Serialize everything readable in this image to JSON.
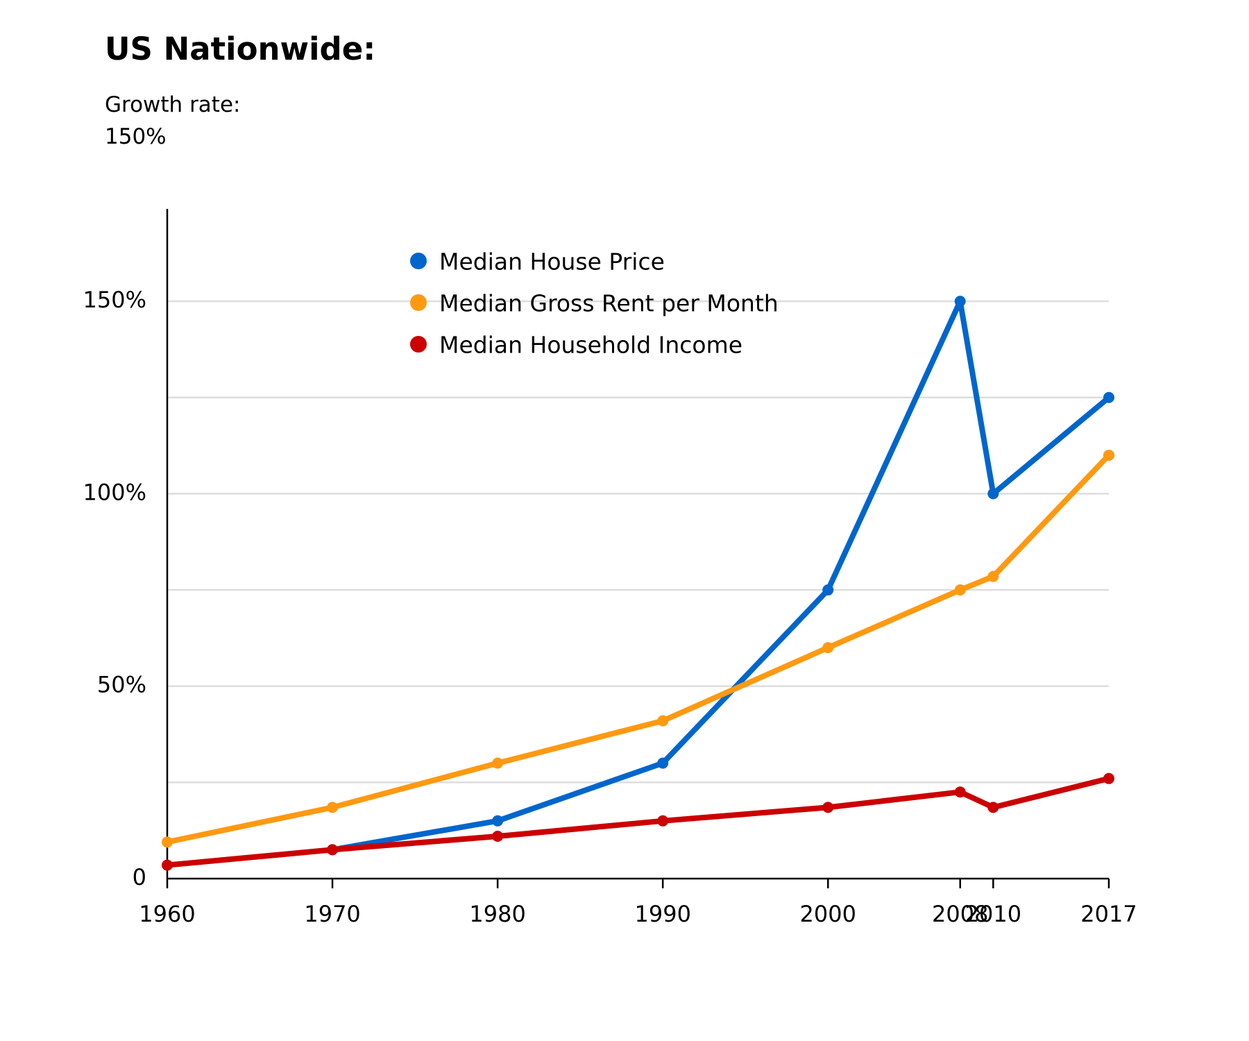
{
  "title": "US Nationwide:",
  "subtitle": "Growth rate:",
  "subtitle_value": "150%",
  "chart_data": {
    "type": "line",
    "x": [
      1960,
      1970,
      1980,
      1990,
      2000,
      2008,
      2010,
      2017
    ],
    "x_tick_labels": [
      "1960",
      "1970",
      "1980",
      "1990",
      "2000",
      "2008",
      "2010",
      "2017"
    ],
    "y_tick_values": [
      0,
      50,
      100,
      150
    ],
    "y_tick_labels": [
      "0",
      "50%",
      "100%",
      "150%"
    ],
    "ylim": [
      0,
      174
    ],
    "grid": true,
    "legend_placement": "top-center",
    "series": [
      {
        "name": "Median House Price",
        "color": "#0066cc",
        "values": [
          null,
          7.5,
          15,
          30,
          75,
          150,
          100,
          125
        ]
      },
      {
        "name": "Median Gross Rent per Month",
        "color": "#ff9911",
        "values": [
          9.5,
          18.5,
          30,
          41,
          60,
          75,
          78.5,
          110
        ]
      },
      {
        "name": "Median Household Income",
        "color": "#cc0000",
        "values": [
          3.5,
          7.5,
          11,
          15,
          18.5,
          22.5,
          18.5,
          26
        ]
      }
    ]
  }
}
